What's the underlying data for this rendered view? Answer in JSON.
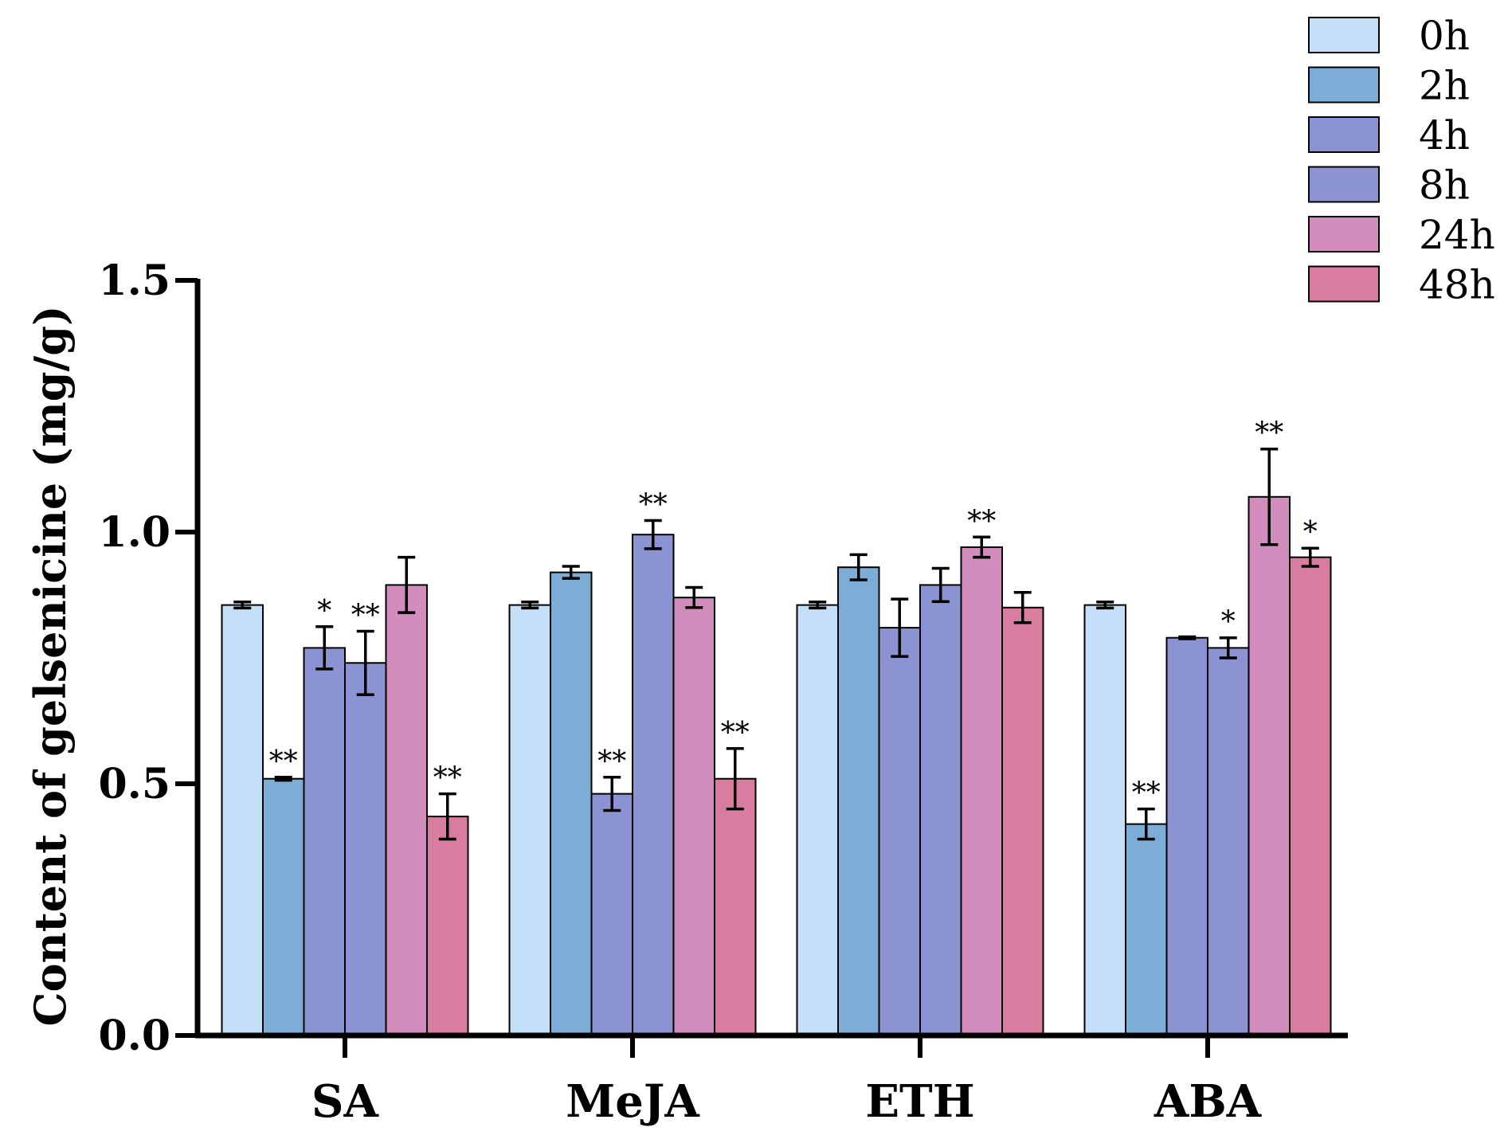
{
  "chart_data": {
    "type": "bar",
    "title": "",
    "xlabel": "",
    "ylabel": "Content of gelsenicine (mg/g)",
    "ylim": [
      0,
      1.5
    ],
    "yticks": [
      "0.0",
      "0.5",
      "1.0",
      "1.5"
    ],
    "ytick_values": [
      0,
      0.5,
      1.0,
      1.5
    ],
    "categories": [
      "SA",
      "MeJA",
      "ETH",
      "ABA"
    ],
    "legend_position": "top-right",
    "series": [
      {
        "name": "0h",
        "color": "#c3e0f8",
        "values": [
          0.855,
          0.855,
          0.855,
          0.855
        ],
        "errors": [
          0.006,
          0.006,
          0.006,
          0.006
        ],
        "significance": [
          "",
          "",
          "",
          ""
        ]
      },
      {
        "name": "2h",
        "color": "#7badd6",
        "values": [
          0.51,
          0.92,
          0.93,
          0.42
        ],
        "errors": [
          0.003,
          0.012,
          0.025,
          0.03
        ],
        "significance": [
          "**",
          "",
          "",
          "**"
        ]
      },
      {
        "name": "4h",
        "color": "#8b93d2",
        "values": [
          0.77,
          0.48,
          0.81,
          0.79
        ],
        "errors": [
          0.042,
          0.033,
          0.057,
          0.002
        ],
        "significance": [
          "*",
          "**",
          "",
          ""
        ]
      },
      {
        "name": "8h",
        "color": "#8b93d2",
        "values": [
          0.74,
          0.995,
          0.895,
          0.77
        ],
        "errors": [
          0.063,
          0.028,
          0.033,
          0.02
        ],
        "significance": [
          "**",
          "**",
          "",
          "*"
        ]
      },
      {
        "name": "24h",
        "color": "#d38dbc",
        "values": [
          0.895,
          0.87,
          0.97,
          1.07
        ],
        "errors": [
          0.055,
          0.02,
          0.02,
          0.095
        ],
        "significance": [
          "",
          "",
          "**",
          "**"
        ]
      },
      {
        "name": "48h",
        "color": "#d97da0",
        "values": [
          0.435,
          0.51,
          0.85,
          0.95
        ],
        "errors": [
          0.045,
          0.06,
          0.03,
          0.018
        ],
        "significance": [
          "**",
          "**",
          "",
          "*"
        ]
      }
    ]
  }
}
